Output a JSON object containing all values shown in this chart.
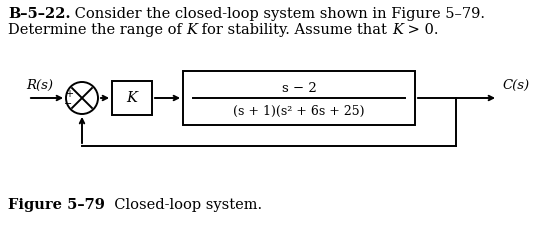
{
  "title_line1_bold": "B–5–22.",
  "title_line1_rest": " Consider the closed-loop system shown in Figure 5–79.",
  "title_line2_pre": "Determine the range of ",
  "title_line2_K": "K",
  "title_line2_mid": " for stability. Assume that ",
  "title_line2_K2": "K",
  "title_line2_end": " > 0.",
  "R_label": "R(s)",
  "C_label": "C(s)",
  "K_label": "K",
  "numerator": "s − 2",
  "denominator": "(s + 1)(s² + 6s + 25)",
  "figure_bold": "Figure 5–79",
  "figure_rest": "  Closed-loop system.",
  "bg_color": "#ffffff",
  "line_color": "#000000",
  "font_size_title": 10.5,
  "font_size_diagram": 9.5,
  "font_size_caption": 10.5
}
